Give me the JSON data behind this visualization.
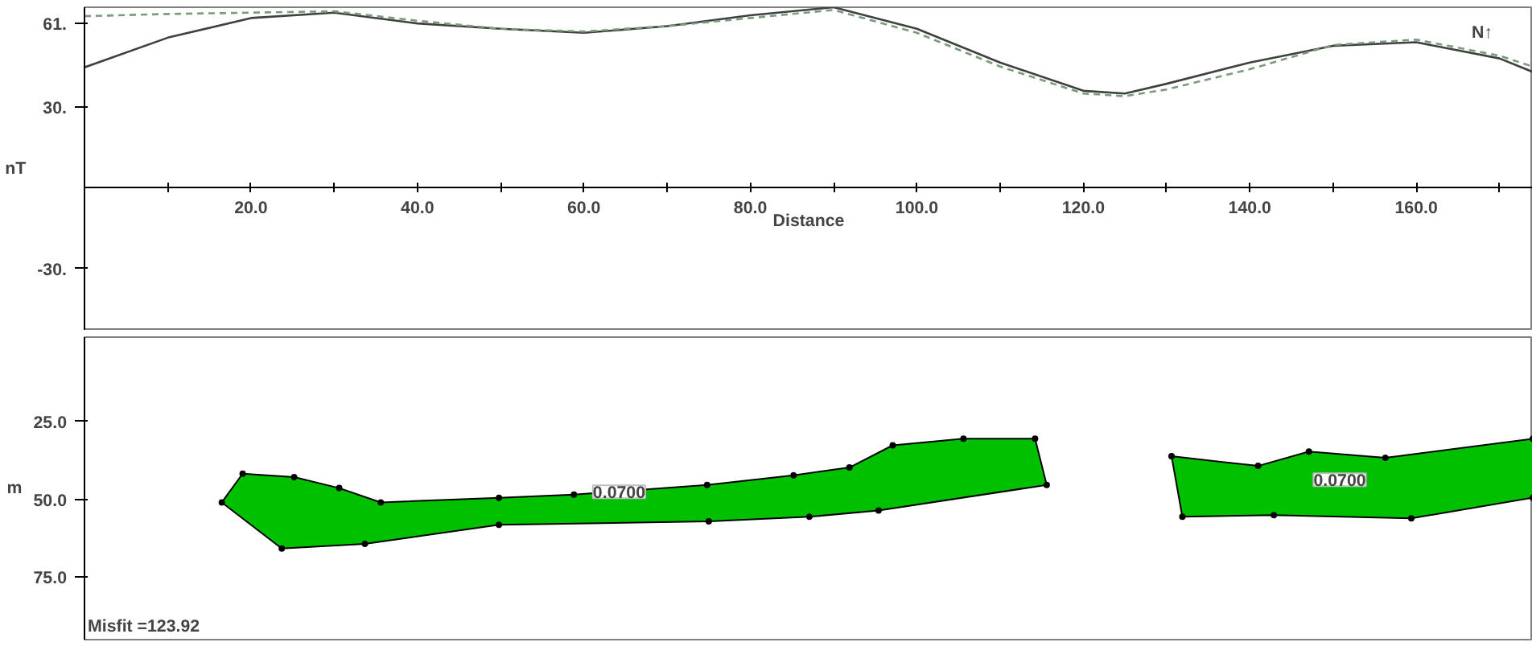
{
  "chart_data": [
    {
      "type": "line",
      "xlabel": "Distance",
      "ylabel": "nT",
      "xlim": [
        0,
        174
      ],
      "ylim": [
        -53,
        67
      ],
      "xticks": [
        {
          "value": 10,
          "label": null
        },
        {
          "value": 20,
          "label": "20.0"
        },
        {
          "value": 30,
          "label": null
        },
        {
          "value": 40,
          "label": "40.0"
        },
        {
          "value": 50,
          "label": null
        },
        {
          "value": 60,
          "label": "60.0"
        },
        {
          "value": 70,
          "label": null
        },
        {
          "value": 80,
          "label": "80.0"
        },
        {
          "value": 90,
          "label": null
        },
        {
          "value": 100,
          "label": "100.0"
        },
        {
          "value": 110,
          "label": null
        },
        {
          "value": 120,
          "label": "120.0"
        },
        {
          "value": 130,
          "label": null
        },
        {
          "value": 140,
          "label": "140.0"
        },
        {
          "value": 150,
          "label": null
        },
        {
          "value": 160,
          "label": "160.0"
        },
        {
          "value": 170,
          "label": null
        }
      ],
      "yticks": [
        {
          "value": 61,
          "label": "61."
        },
        {
          "value": 30,
          "label": "30."
        },
        {
          "value": -30,
          "label": "-30."
        }
      ],
      "x": [
        0,
        10,
        20,
        30,
        40,
        50,
        60,
        70,
        80,
        90,
        100,
        110,
        120,
        125,
        130,
        140,
        150,
        160,
        170,
        174
      ],
      "series": [
        {
          "color": "#404040",
          "line_style": "solid",
          "values": [
            44.7,
            55.7,
            63,
            65,
            61,
            59,
            57.5,
            60,
            64,
            67,
            59,
            46.5,
            36,
            35,
            38.6,
            46.5,
            52.7,
            54,
            48,
            43
          ]
        },
        {
          "color": "#7a9a7a",
          "line_style": "dashed",
          "values": [
            63.7,
            64.5,
            65,
            65.5,
            62,
            59,
            58,
            60,
            63,
            66,
            57.5,
            45,
            35,
            34,
            36.5,
            44,
            53,
            55,
            49,
            45
          ]
        }
      ],
      "annotations": [
        "N↑"
      ]
    },
    {
      "type": "area",
      "ylabel": "m",
      "xlim": [
        0,
        174
      ],
      "ylim": [
        95,
        -2
      ],
      "tick_labels": "y",
      "yticks": [
        {
          "value": 25,
          "label": "25.0"
        },
        {
          "value": 50,
          "label": "50.0"
        },
        {
          "value": 75,
          "label": "75.0"
        }
      ],
      "series": [
        {
          "color": "#00c000",
          "x": [
            16.5,
            19,
            25.2,
            30.6,
            35.6,
            49.8,
            58.8,
            74.8,
            85.2,
            91.9,
            97.1,
            105.6,
            114.2,
            115.6,
            95.4,
            87.1,
            75,
            49.8,
            33.7,
            23.7
          ],
          "values": [
            51,
            41.8,
            42.9,
            46.4,
            51,
            49.5,
            48.5,
            45.4,
            42.3,
            39.8,
            32.7,
            30.6,
            30.6,
            45.4,
            53.6,
            55.6,
            57.1,
            58.2,
            64.3,
            65.8
          ]
        },
        {
          "color": "#00c000",
          "x": [
            130.6,
            141,
            147.1,
            156.3,
            174,
            174,
            159.4,
            142.9,
            131.9
          ],
          "values": [
            36.2,
            39.3,
            34.7,
            36.7,
            30.6,
            49.5,
            56.1,
            55.1,
            55.6
          ]
        }
      ],
      "annotations": [
        "0.0700",
        "0.0700",
        "Misfit =123.92"
      ]
    }
  ]
}
